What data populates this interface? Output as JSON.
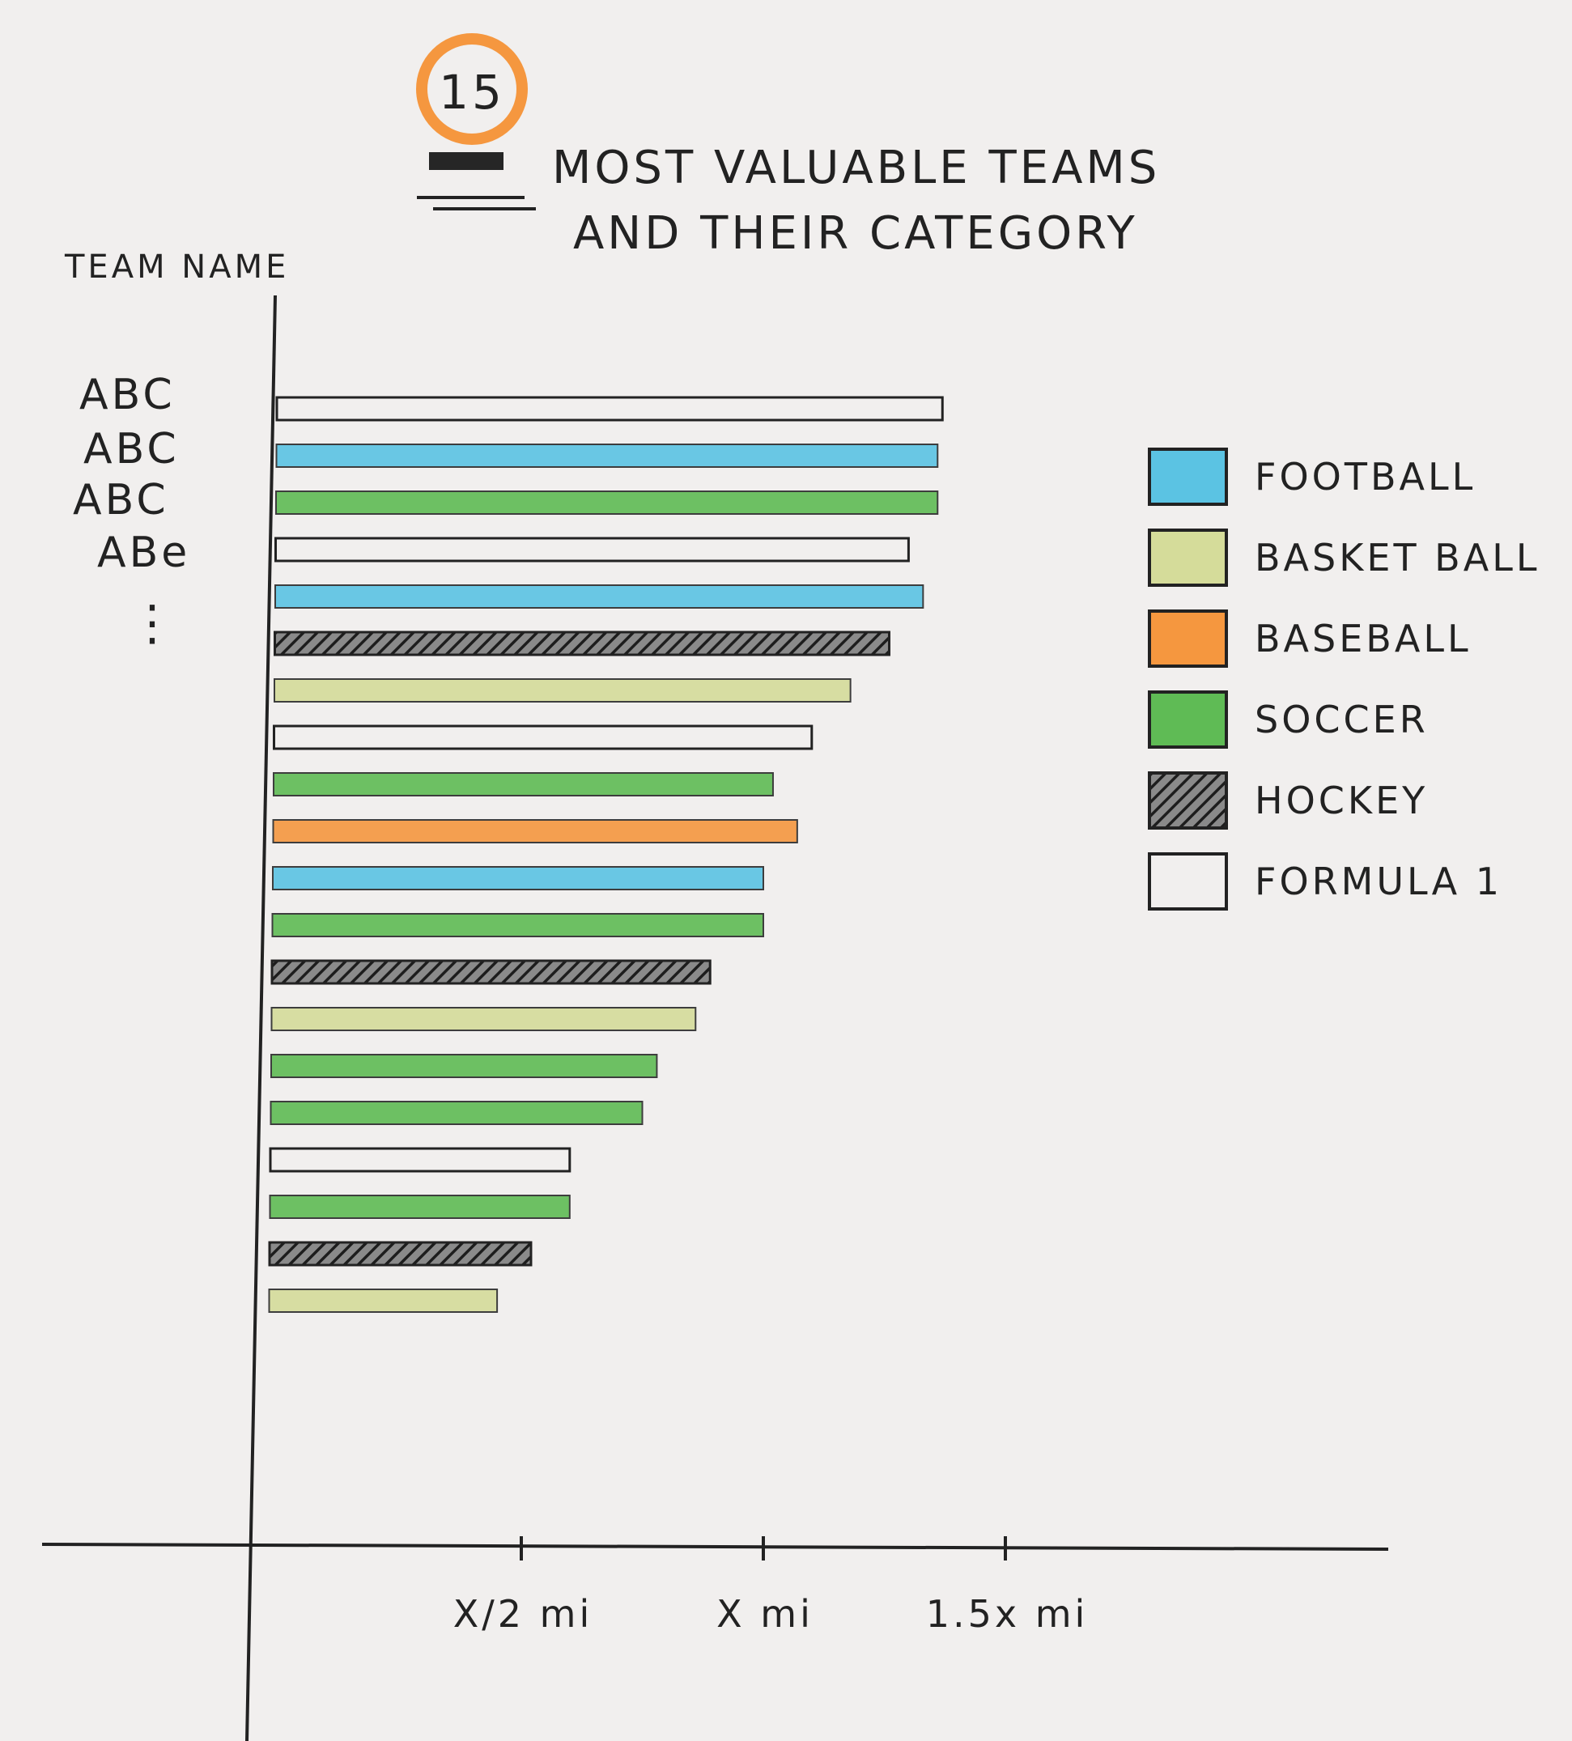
{
  "title": {
    "badge_number": "15",
    "line1": "MOST VALUABLE TEAMS",
    "line2": "AND THEIR CATEGORY"
  },
  "chart_data": {
    "type": "bar",
    "orientation": "horizontal",
    "ylabel": "TEAM NAME",
    "team_labels": [
      "ABC",
      "ABC",
      "ABC",
      "ABe",
      "⋮"
    ],
    "x_ticks": [
      {
        "value": 0.5,
        "label": "X/2 mi"
      },
      {
        "value": 1.0,
        "label": "X mi"
      },
      {
        "value": 1.5,
        "label": "1.5x mi"
      }
    ],
    "xlim": [
      0,
      1.55
    ],
    "legend_position": "right",
    "legend": [
      {
        "key": "football",
        "label": "FOOTBALL",
        "color": "#5bc3e3"
      },
      {
        "key": "basketball",
        "label": "BASKET BALL",
        "color": "#d5dc9a"
      },
      {
        "key": "baseball",
        "label": "BASEBALL",
        "color": "#f5973f"
      },
      {
        "key": "soccer",
        "label": "SOCCER",
        "color": "#5fbb55"
      },
      {
        "key": "hockey",
        "label": "HOCKEY",
        "color": "#2a2a2a"
      },
      {
        "key": "formula1",
        "label": "FORMULA 1",
        "color": "none"
      }
    ],
    "bars": [
      {
        "category": "formula1",
        "value": 1.37
      },
      {
        "category": "football",
        "value": 1.36
      },
      {
        "category": "soccer",
        "value": 1.36
      },
      {
        "category": "formula1",
        "value": 1.3
      },
      {
        "category": "football",
        "value": 1.33
      },
      {
        "category": "hockey",
        "value": 1.26
      },
      {
        "category": "basketball",
        "value": 1.18
      },
      {
        "category": "formula1",
        "value": 1.1
      },
      {
        "category": "soccer",
        "value": 1.02
      },
      {
        "category": "baseball",
        "value": 1.07
      },
      {
        "category": "football",
        "value": 1.0
      },
      {
        "category": "soccer",
        "value": 1.0
      },
      {
        "category": "hockey",
        "value": 0.89
      },
      {
        "category": "basketball",
        "value": 0.86
      },
      {
        "category": "soccer",
        "value": 0.78
      },
      {
        "category": "soccer",
        "value": 0.75
      },
      {
        "category": "formula1",
        "value": 0.6
      },
      {
        "category": "soccer",
        "value": 0.6
      },
      {
        "category": "hockey",
        "value": 0.52
      },
      {
        "category": "basketball",
        "value": 0.45
      }
    ]
  }
}
